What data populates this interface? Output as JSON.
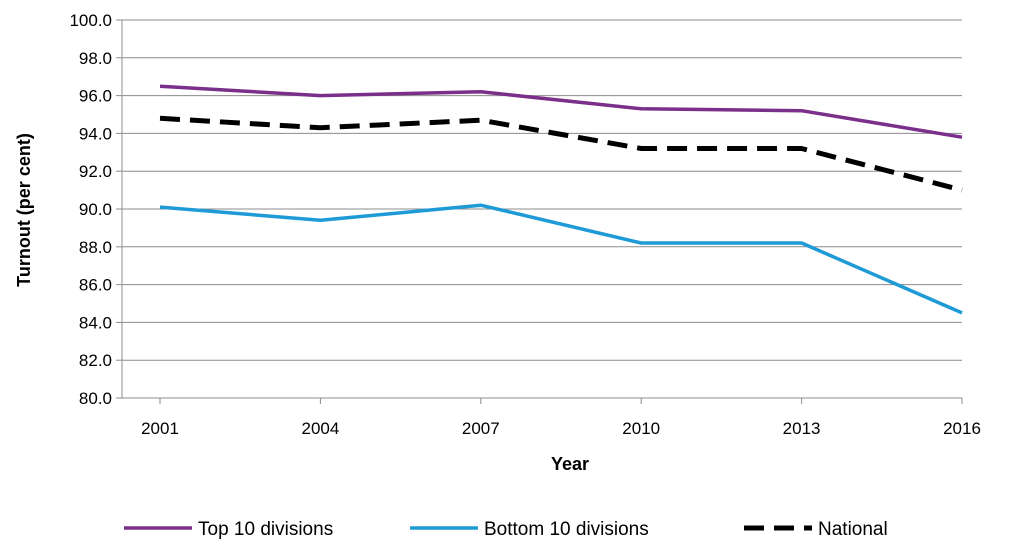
{
  "chart_data": {
    "type": "line",
    "title": "",
    "xlabel": "Year",
    "ylabel": "Turnout (per cent)",
    "categories": [
      "2001",
      "2004",
      "2007",
      "2010",
      "2013",
      "2016"
    ],
    "y_ticks": [
      "80.0",
      "82.0",
      "84.0",
      "86.0",
      "88.0",
      "90.0",
      "92.0",
      "94.0",
      "96.0",
      "98.0",
      "100.0"
    ],
    "ylim": [
      80,
      100
    ],
    "grid": true,
    "legend_position": "bottom",
    "series": [
      {
        "name": "Top 10 divisions",
        "color": "#7a2f8a",
        "style": "solid",
        "values": [
          96.5,
          96.0,
          96.2,
          95.3,
          95.2,
          93.8
        ]
      },
      {
        "name": "Bottom 10 divisions",
        "color": "#1e9ad6",
        "style": "solid",
        "values": [
          90.1,
          89.4,
          90.2,
          88.2,
          88.2,
          84.5
        ]
      },
      {
        "name": "National",
        "color": "#000000",
        "style": "dashed",
        "values": [
          94.8,
          94.3,
          94.7,
          93.2,
          93.2,
          91.0
        ]
      }
    ]
  }
}
